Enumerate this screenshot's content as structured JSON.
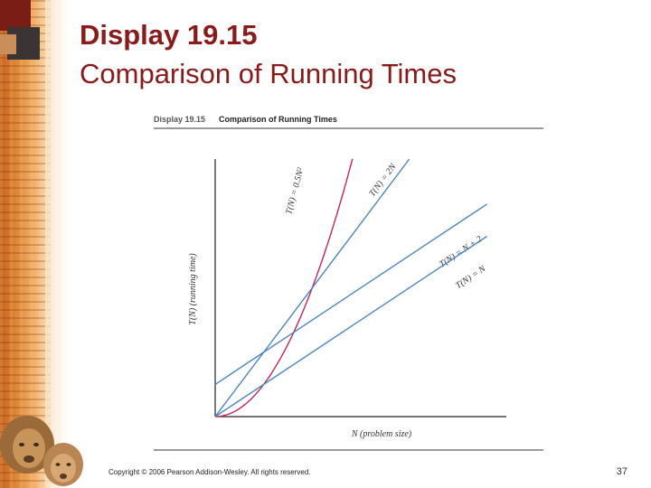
{
  "slide": {
    "title_line1": "Display 19.15",
    "title_line2": "Comparison of Running Times",
    "footer": "Copyright © 2006 Pearson Addison-Wesley. All rights reserved.",
    "page_number": "37"
  },
  "colors": {
    "title": "#8b1a1a",
    "linear_lines": "#4a86c5",
    "quadratic_curve": "#c8245a",
    "axes": "#222222",
    "wood": "#d9762a"
  },
  "figure": {
    "display_label": "Display 19.15",
    "display_title": "Comparison of Running Times"
  },
  "chart_data": {
    "type": "line",
    "title": "",
    "xlabel": "N (problem size)",
    "ylabel": "T(N) (running time)",
    "xlim": [
      0,
      12
    ],
    "ylim": [
      0,
      16
    ],
    "grid": false,
    "ticks_shown": false,
    "legend": "labels at line ends",
    "series": [
      {
        "name": "T(N) = 0.5N²",
        "formula": "0.5*N^2",
        "color": "#c8245a",
        "x": [
          0,
          1,
          2,
          3,
          4,
          5,
          5.66
        ],
        "y": [
          0,
          0.5,
          2,
          4.5,
          8,
          12.5,
          16
        ]
      },
      {
        "name": "T(N) = 2N",
        "formula": "2*N",
        "color": "#4a86c5",
        "x": [
          0,
          8
        ],
        "y": [
          0,
          16
        ]
      },
      {
        "name": "T(N) = N + 2",
        "formula": "N+2",
        "color": "#4a86c5",
        "x": [
          0,
          11.2
        ],
        "y": [
          2,
          13.2
        ]
      },
      {
        "name": "T(N) = N",
        "formula": "N",
        "color": "#4a86c5",
        "x": [
          0,
          11.2
        ],
        "y": [
          0,
          11.2
        ]
      }
    ]
  }
}
